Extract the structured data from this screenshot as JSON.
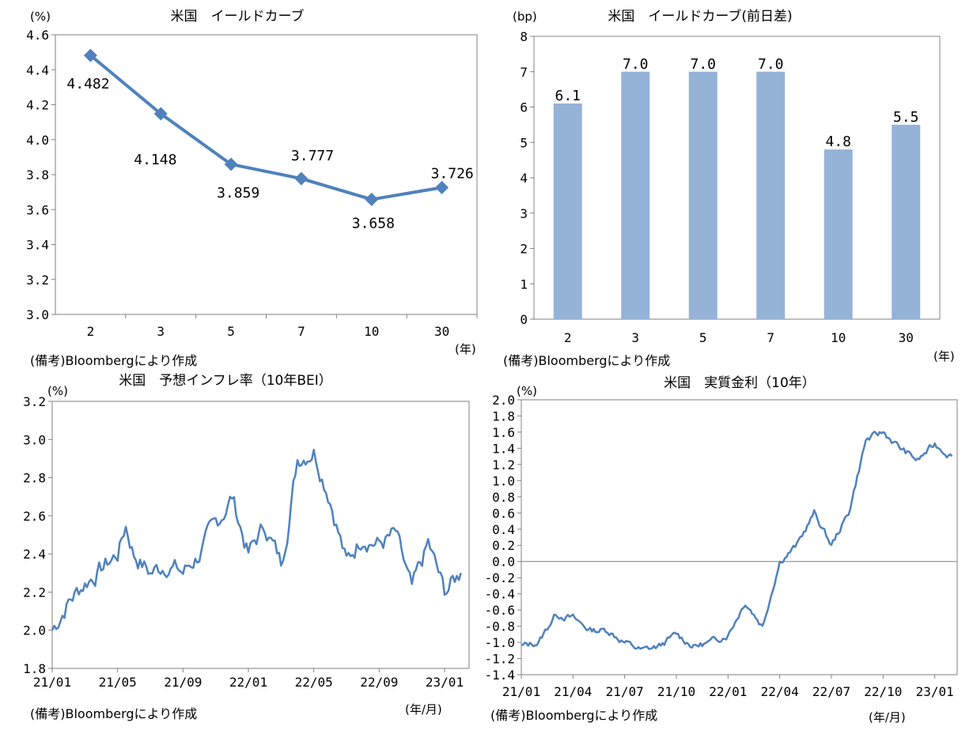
{
  "chart_data": [
    {
      "type": "line",
      "title": "米国　イールドカーブ",
      "ylabel": "(%)",
      "xlabel": "(年)",
      "note": "(備考)Bloombergにより作成",
      "categories": [
        "2",
        "3",
        "5",
        "7",
        "10",
        "30"
      ],
      "values": [
        4.482,
        4.148,
        3.859,
        3.777,
        3.658,
        3.726
      ],
      "value_labels": [
        "4.482",
        "4.148",
        "3.859",
        "3.777",
        "3.658",
        "3.726"
      ],
      "ylim": [
        3.0,
        4.6
      ],
      "yticks": [
        "3.0",
        "3.2",
        "3.4",
        "3.6",
        "3.8",
        "4.0",
        "4.2",
        "4.4",
        "4.6"
      ],
      "color": "#4f81bd"
    },
    {
      "type": "bar",
      "title": "米国　イールドカーブ(前日差)",
      "ylabel": "(bp)",
      "xlabel": "(年)",
      "note": "(備考)Bloombergにより作成",
      "categories": [
        "2",
        "3",
        "5",
        "7",
        "10",
        "30"
      ],
      "values": [
        6.1,
        7.0,
        7.0,
        7.0,
        4.8,
        5.5
      ],
      "value_labels": [
        "6.1",
        "7.0",
        "7.0",
        "7.0",
        "4.8",
        "5.5"
      ],
      "ylim": [
        0,
        8
      ],
      "yticks": [
        "0",
        "1",
        "2",
        "3",
        "4",
        "5",
        "6",
        "7",
        "8"
      ],
      "color": "#95b3d7"
    },
    {
      "type": "line",
      "title": "米国　予想インフレ率（10年BEI）",
      "ylabel": "(%)",
      "xlabel": "(年/月)",
      "note": "(備考)Bloombergにより作成",
      "ylim": [
        1.8,
        3.2
      ],
      "yticks": [
        "1.8",
        "2.0",
        "2.2",
        "2.4",
        "2.6",
        "2.8",
        "3.0",
        "3.2"
      ],
      "xticks": [
        "21/01",
        "21/05",
        "21/09",
        "22/01",
        "22/05",
        "22/09",
        "23/01"
      ],
      "x_months": [
        0,
        1,
        2,
        3,
        4,
        4.5,
        5,
        6,
        7,
        8,
        9,
        10,
        11,
        12,
        13,
        14,
        14.5,
        15,
        16,
        17,
        18,
        19,
        20,
        21,
        22,
        23,
        24,
        25
      ],
      "values": [
        2.0,
        2.15,
        2.25,
        2.32,
        2.4,
        2.55,
        2.4,
        2.3,
        2.35,
        2.3,
        2.4,
        2.55,
        2.7,
        2.4,
        2.55,
        2.35,
        2.6,
        2.9,
        2.95,
        2.7,
        2.35,
        2.5,
        2.45,
        2.5,
        2.2,
        2.45,
        2.2,
        2.3
      ],
      "color": "#4f81bd"
    },
    {
      "type": "line",
      "title": "米国　実質金利（10年）",
      "ylabel": "(%)",
      "xlabel": "(年/月)",
      "note": "(備考)Bloombergにより作成",
      "ylim": [
        -1.4,
        2.0
      ],
      "yticks": [
        "-1.4",
        "-1.2",
        "-1.0",
        "-0.8",
        "-0.6",
        "-0.4",
        "-0.2",
        "0.0",
        "0.2",
        "0.4",
        "0.6",
        "0.8",
        "1.0",
        "1.2",
        "1.4",
        "1.6",
        "1.8",
        "2.0"
      ],
      "xticks": [
        "21/01",
        "21/04",
        "21/07",
        "21/10",
        "22/01",
        "22/04",
        "22/07",
        "22/10",
        "23/01"
      ],
      "x_months": [
        0,
        1,
        2,
        3,
        4,
        5,
        6,
        7,
        8,
        9,
        10,
        11,
        12,
        13,
        14,
        15,
        16,
        17,
        18,
        19,
        20,
        21,
        22,
        23,
        24,
        25
      ],
      "values": [
        -1.05,
        -1.0,
        -0.65,
        -0.7,
        -0.85,
        -0.85,
        -1.0,
        -1.1,
        -1.05,
        -0.9,
        -1.05,
        -1.0,
        -0.9,
        -0.5,
        -0.8,
        0.0,
        0.2,
        0.6,
        0.2,
        0.6,
        1.5,
        1.6,
        1.4,
        1.25,
        1.45,
        1.3
      ],
      "color": "#4f81bd"
    }
  ]
}
